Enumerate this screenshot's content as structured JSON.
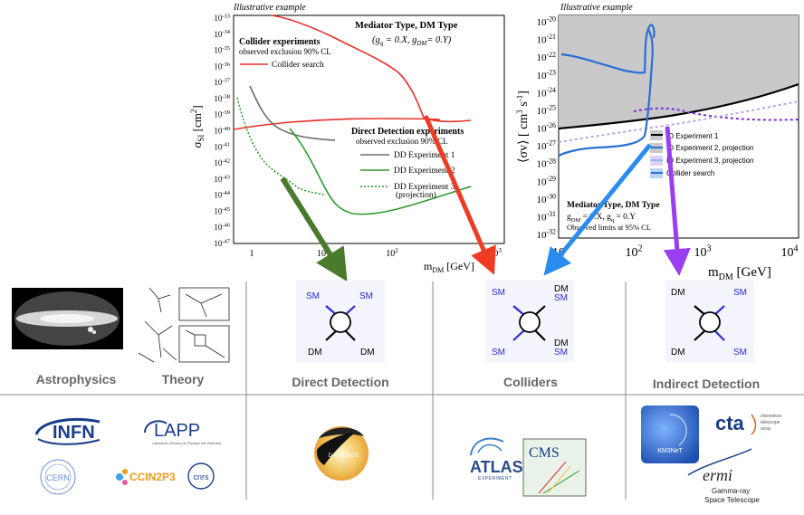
{
  "colors": {
    "experiment_red": "#e8302a",
    "collider_red": "#e8302a",
    "dd_green": "#2f9a2f",
    "dd_gray": "#6b6b6b",
    "id_black": "#000000",
    "id_blue": "#2a6fd6",
    "id_lightblue": "#8fb4ec",
    "id_purple": "#8a2be2",
    "arrow_green": "#4a7a2c",
    "arrow_red": "#ef3b24",
    "arrow_blue": "#2b8cf0",
    "arrow_purple": "#9a3ff0",
    "feynman_blue": "#2a2ad6",
    "category_text": "#666666"
  },
  "left_chart": {
    "illustrative": "Illustrative example",
    "ylabel_main": "σ",
    "ylabel_sub": "SI",
    "ylabel_unit": "[cm",
    "ylabel_unit_sup": "2",
    "ylabel_unit_end": "]",
    "xlabel_main": "m",
    "xlabel_sub": "DM",
    "xlabel_unit": "[GeV]",
    "mediator_title": "Mediator Type, DM Type",
    "mediator_couplings": "(g",
    "mediator_couplings_sub": "q",
    "mediator_couplings_mid": " = 0.X, g",
    "mediator_couplings_sub2": "DM",
    "mediator_couplings_end": "= 0.Y)",
    "collider_title": "Collider experiments",
    "collider_sub": "observed exclusion 90% CL",
    "collider_search": "Collider search",
    "dd_title": "Direct Detection experiments",
    "dd_sub": "observed exclusion 90% CL",
    "dd_exp1": "DD Experiment 1",
    "dd_exp2": "DD Experiment 2",
    "dd_exp3": "DD Experiment 3",
    "dd_exp3_note": "(projection)",
    "yticks": [
      "10",
      "10",
      "10",
      "10",
      "10",
      "10",
      "10",
      "10",
      "10",
      "10",
      "10",
      "10",
      "10",
      "10",
      "10"
    ],
    "ytick_exps": [
      "-33",
      "-34",
      "-35",
      "-36",
      "-37",
      "-38",
      "-39",
      "-40",
      "-41",
      "-42",
      "-43",
      "-44",
      "-45",
      "-46",
      "-47"
    ],
    "xticks": [
      "1",
      "10",
      "10",
      "10"
    ],
    "xtick_exps": [
      "",
      "",
      "2",
      "3"
    ]
  },
  "right_chart": {
    "illustrative": "Illustrative example",
    "ylabel": "⟨σv⟩",
    "ylabel_unit": "[ cm",
    "ylabel_unit_sup": "3",
    "ylabel_unit_mid": " s",
    "ylabel_unit_sup2": "-1",
    "ylabel_unit_end": "]",
    "xlabel_main": "m",
    "xlabel_sub": "DM",
    "xlabel_unit": "[GeV]",
    "legend": [
      "ID Experiment 1",
      "ID Experiment 2, projection",
      "ID Experiment 3, projection",
      "Collider search"
    ],
    "mediator_title": "Mediator Type, DM Type",
    "couplings_g": "g",
    "couplings_dm": "DM",
    "couplings_mid": " = 0.X, g",
    "couplings_q": "q",
    "couplings_end": " = 0.Y",
    "observed": "Observed limits at 95% CL",
    "yticks": [
      "10",
      "10",
      "10",
      "10",
      "10",
      "10",
      "10",
      "10",
      "10",
      "10",
      "10",
      "10",
      "10"
    ],
    "ytick_exps": [
      "-20",
      "-21",
      "-22",
      "-23",
      "-24",
      "-25",
      "-26",
      "-27",
      "-28",
      "-29",
      "-30",
      "-31",
      "-32"
    ],
    "xticks": [
      "10",
      "10",
      "10",
      "10"
    ],
    "xtick_exps": [
      "",
      "2",
      "3",
      "4"
    ]
  },
  "categories": {
    "astrophysics": "Astrophysics",
    "theory": "Theory",
    "direct_detection": "Direct Detection",
    "colliders": "Colliders",
    "indirect_detection": "Indirect Detection"
  },
  "feynman": {
    "dd": {
      "tl": "SM",
      "tr": "SM",
      "bl": "DM",
      "br": "DM"
    },
    "col": {
      "tl": "SM",
      "tr1": "DM",
      "tr2": "SM",
      "bl": "SM",
      "br1": "DM",
      "br2": "SM"
    },
    "id": {
      "tl": "DM",
      "tr": "SM",
      "bl": "DM",
      "br": "SM"
    }
  },
  "logos": {
    "infn": "INFN",
    "lapp": "LAPP",
    "lapp_small": "Laboratoire d'Annecy de Physique des Particules",
    "cern": "CERN",
    "ccin2p3": "CCIN2P3",
    "cnrs": "cnrs",
    "darkside": "DARKSIDE",
    "atlas": "ATLAS",
    "atlas_sub": "EXPERIMENT",
    "cms": "CMS",
    "km3net": "KM3NeT",
    "cta": "cta",
    "cta_side1": "cherenkov",
    "cta_side2": "telescope",
    "cta_side3": "array",
    "fermi": "ermi",
    "fermi_sub1": "Gamma-ray",
    "fermi_sub2": "Space Telescope"
  }
}
